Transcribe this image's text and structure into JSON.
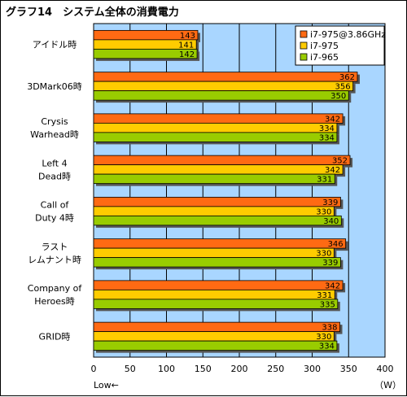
{
  "chart_data": {
    "type": "bar",
    "orientation": "horizontal",
    "title": "グラフ14　システム全体の消費電力",
    "categories": [
      [
        "アイドル時"
      ],
      [
        "3DMark06時"
      ],
      [
        "Crysis",
        "Warhead時"
      ],
      [
        "Left 4",
        "Dead時"
      ],
      [
        "Call of",
        "Duty 4時"
      ],
      [
        "ラスト",
        "レムナント時"
      ],
      [
        "Company of",
        "Heroes時"
      ],
      [
        "GRID時"
      ]
    ],
    "series": [
      {
        "name": "i7-975@3.86GHz",
        "color": "#ff6a13",
        "values": [
          143,
          362,
          342,
          352,
          339,
          346,
          342,
          338
        ]
      },
      {
        "name": "i7-975",
        "color": "#ffcc00",
        "values": [
          141,
          356,
          334,
          342,
          330,
          330,
          331,
          330
        ]
      },
      {
        "name": "i7-965",
        "color": "#99cc00",
        "values": [
          142,
          350,
          334,
          331,
          340,
          339,
          335,
          334
        ]
      }
    ],
    "xlim": [
      0,
      400
    ],
    "xticks": [
      0,
      50,
      100,
      150,
      200,
      250,
      300,
      350,
      400
    ],
    "x_note": "Low←",
    "unit": "（W）",
    "legend_position": "top-right",
    "grid": true,
    "plot_background": "#a9d6ff"
  }
}
